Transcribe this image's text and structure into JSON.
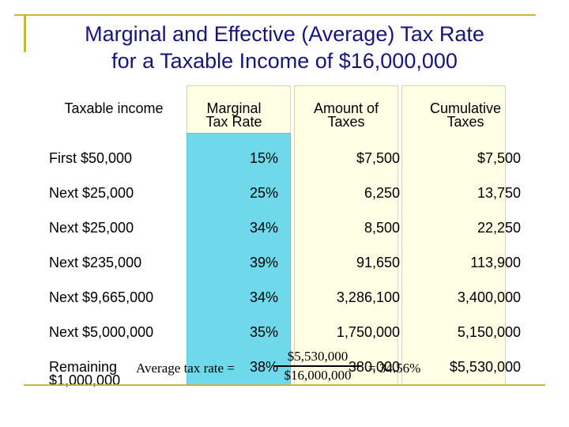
{
  "title_line1": "Marginal and Effective (Average) Tax Rate",
  "title_line2": "for a Taxable Income of $16,000,000",
  "headers": {
    "income": "Taxable income",
    "rate_1": "Marginal",
    "rate_2": "Tax Rate",
    "amount_1": "Amount of",
    "amount_2": "Taxes",
    "cumulative_1": "Cumulative",
    "cumulative_2": "Taxes"
  },
  "rows": [
    {
      "label": "First $50,000",
      "rate": "15%",
      "amount": "$7,500",
      "cumulative": "$7,500"
    },
    {
      "label": "Next $25,000",
      "rate": "25%",
      "amount": "6,250",
      "cumulative": "13,750"
    },
    {
      "label": "Next $25,000",
      "rate": "34%",
      "amount": "8,500",
      "cumulative": "22,250"
    },
    {
      "label": "Next $235,000",
      "rate": "39%",
      "amount": "91,650",
      "cumulative": "113,900"
    },
    {
      "label": "Next $9,665,000",
      "rate": "34%",
      "amount": "3,286,100",
      "cumulative": "3,400,000"
    },
    {
      "label": "Next $5,000,000",
      "rate": "35%",
      "amount": "1,750,000",
      "cumulative": "5,150,000"
    }
  ],
  "last_row": {
    "label_1": "Remaining",
    "label_2": "$1,000,000",
    "rate": "38%",
    "amount": "380,000",
    "cumulative": "$5,530,000"
  },
  "formula": {
    "lead": "Average tax rate =",
    "numerator": "$5,530,000",
    "denominator": "$16,000,000",
    "result": "= 34.56%"
  }
}
